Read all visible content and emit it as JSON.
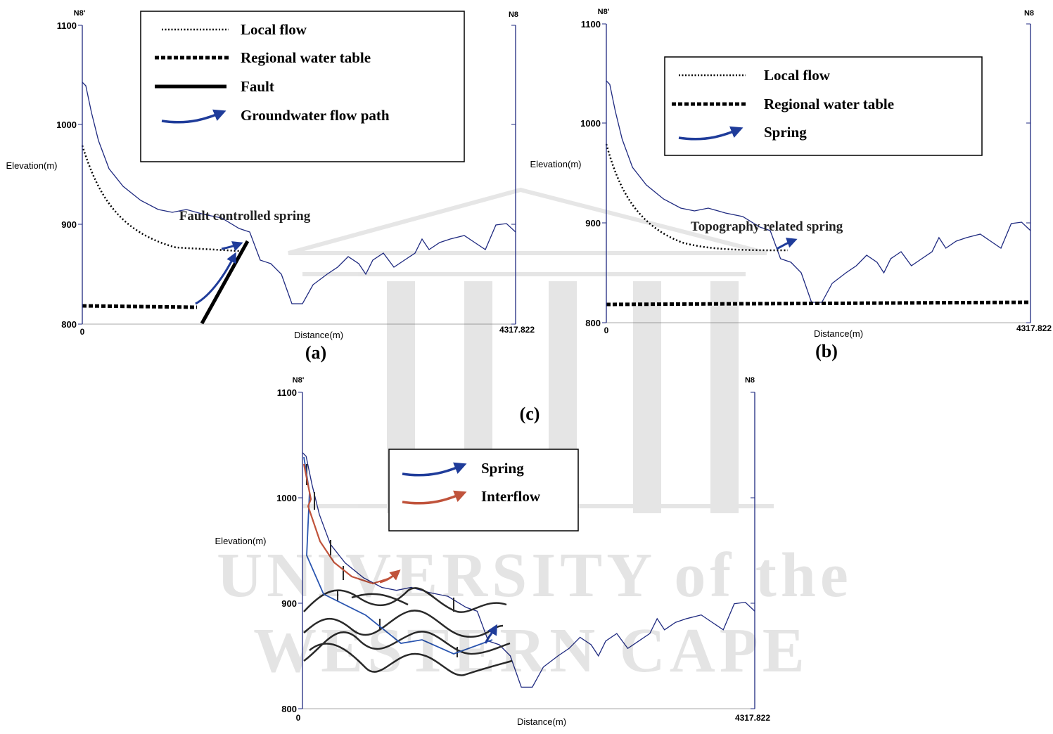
{
  "panels": [
    {
      "label": "(a)",
      "left_label": "N8'",
      "right_label": "N8",
      "y_axis_title": "Elevation(m)",
      "x_axis_title": "Distance(m)",
      "y_ticks": [
        "1100",
        "1000",
        "900",
        "800"
      ],
      "x_ticks": [
        "0",
        "4317.822"
      ],
      "annotation": "Fault controlled spring",
      "legend": [
        "Local flow",
        "Regional water table",
        "Fault",
        "Groundwater flow path"
      ]
    },
    {
      "label": "(b)",
      "left_label": "N8'",
      "right_label": "N8",
      "y_axis_title": "Elevation(m)",
      "x_axis_title": "Distance(m)",
      "y_ticks": [
        "1100",
        "1000",
        "900",
        "800"
      ],
      "x_ticks": [
        "0",
        "4317.822"
      ],
      "annotation": "Topography related spring",
      "legend": [
        "Local flow",
        "Regional water table",
        "Spring"
      ]
    },
    {
      "label": "(c)",
      "left_label": "N8'",
      "right_label": "N8",
      "y_axis_title": "Elevation(m)",
      "x_axis_title": "Distance(m)",
      "y_ticks": [
        "1100",
        "1000",
        "900",
        "800"
      ],
      "x_ticks": [
        "0",
        "4317.822"
      ],
      "legend": [
        "Spring",
        "Interflow"
      ]
    }
  ],
  "watermark": [
    "UNIVERSITY of the",
    "WESTERN CAPE"
  ]
}
